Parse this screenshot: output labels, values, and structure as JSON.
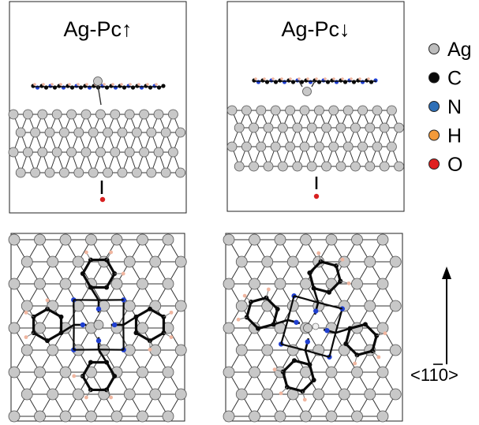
{
  "panels": {
    "top_left_title": "Ag-Pc↑",
    "top_right_title": "Ag-Pc↓"
  },
  "legend": [
    {
      "symbol": "Ag",
      "color": "#bdbdbd"
    },
    {
      "symbol": "C",
      "color": "#0a0a0a"
    },
    {
      "symbol": "N",
      "color": "#2e6fb7"
    },
    {
      "symbol": "H",
      "color": "#f39a3a"
    },
    {
      "symbol": "O",
      "color": "#e02020"
    }
  ],
  "direction": {
    "pre": "<1",
    "bar": "1",
    "post": "0>"
  },
  "colors": {
    "ag": "#c8c8c8",
    "ag_stroke": "#555555",
    "carbon": "#0a0a0a",
    "nitrogen": "#1f3fd0",
    "hydrogen": "#f0b6a0",
    "oxygen": "#d82020",
    "bond": "#333333"
  }
}
